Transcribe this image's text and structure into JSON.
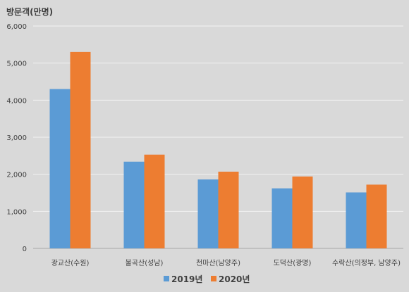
{
  "chart_data": {
    "type": "bar",
    "ylabel": "방문객(만명)",
    "categories": [
      "광교산(수원)",
      "불곡산(성남)",
      "천마산(남양주)",
      "도덕산(광명)",
      "수락산(의정부, 남양주)"
    ],
    "series": [
      {
        "name": "2019년",
        "color": "#5b9bd5",
        "values": [
          4300,
          2340,
          1860,
          1620,
          1510
        ]
      },
      {
        "name": "2020년",
        "color": "#ed7d31",
        "values": [
          5300,
          2530,
          2070,
          1940,
          1720
        ]
      }
    ],
    "ylim": [
      0,
      6000
    ],
    "yticks": [
      0,
      1000,
      2000,
      3000,
      4000,
      5000,
      6000
    ],
    "ytick_labels": [
      "0",
      "1,000",
      "2,000",
      "3,000",
      "4,000",
      "5,000",
      "6,000"
    ],
    "grid": true,
    "legend_position": "bottom"
  }
}
